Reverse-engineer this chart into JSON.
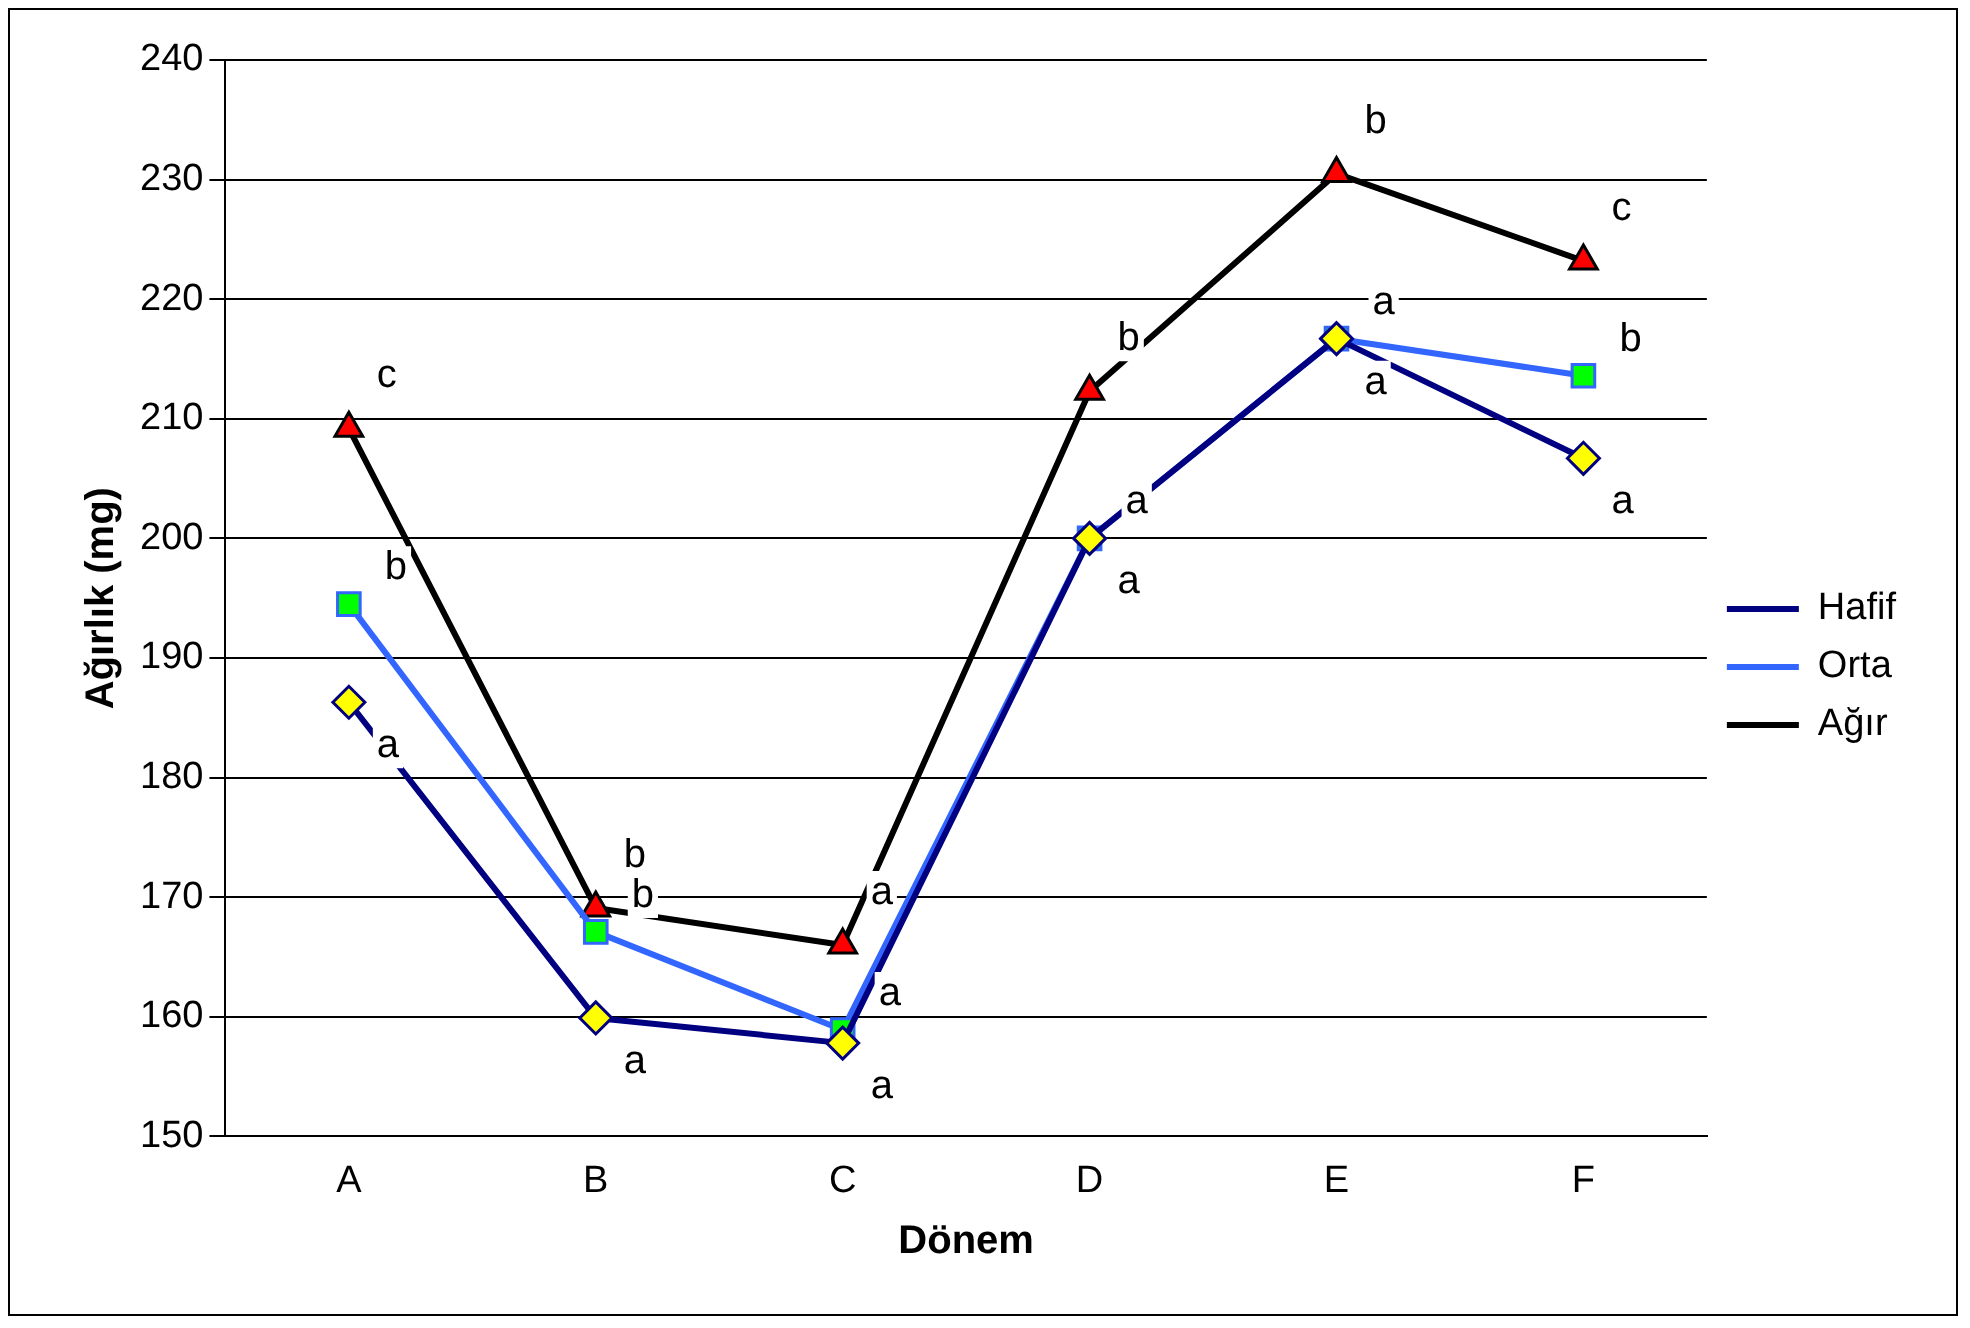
{
  "chart_data": {
    "type": "line",
    "xlabel": "Dönem",
    "ylabel": "Ağırlık (mg)",
    "categories": [
      "A",
      "B",
      "C",
      "D",
      "E",
      "F"
    ],
    "ylim": [
      150,
      240
    ],
    "yticks": [
      150,
      160,
      170,
      180,
      190,
      200,
      210,
      220,
      230,
      240
    ],
    "grid": "y",
    "legend": "right",
    "series": [
      {
        "name": "Hafif",
        "color": "#000080",
        "colors": [
          "#ffff00",
          "#ffff00",
          "#ffff00",
          "#ffff00",
          "#ffff00",
          "#ffff00"
        ],
        "marker": "diamond",
        "values": [
          186.3,
          159.9,
          157.8,
          200,
          216.7,
          206.7
        ],
        "value_labels": [
          "a",
          "a",
          "a",
          "a",
          "a",
          "a"
        ]
      },
      {
        "name": "Orta",
        "color": "#3366ff",
        "colors": [
          "#00ff00",
          "#00ff00",
          "#00ff00",
          "#00ff00",
          "#00ff00",
          "#00ff00"
        ],
        "marker": "square",
        "values": [
          194.5,
          167.1,
          158.9,
          200,
          216.7,
          213.6
        ],
        "value_labels": [
          "b",
          "b",
          "a",
          "a",
          "a",
          "b"
        ]
      },
      {
        "name": "Ağır",
        "color": "#000000",
        "colors": [
          "#ff0000",
          "#ff0000",
          "#ff0000",
          "#ff0000",
          "#ff0000",
          "#ff0000"
        ],
        "marker": "triangle",
        "values": [
          209.2,
          169.1,
          166,
          212.3,
          230.5,
          223.2
        ],
        "value_labels": [
          "c",
          "b",
          "a",
          "b",
          "b",
          "c"
        ]
      }
    ]
  }
}
